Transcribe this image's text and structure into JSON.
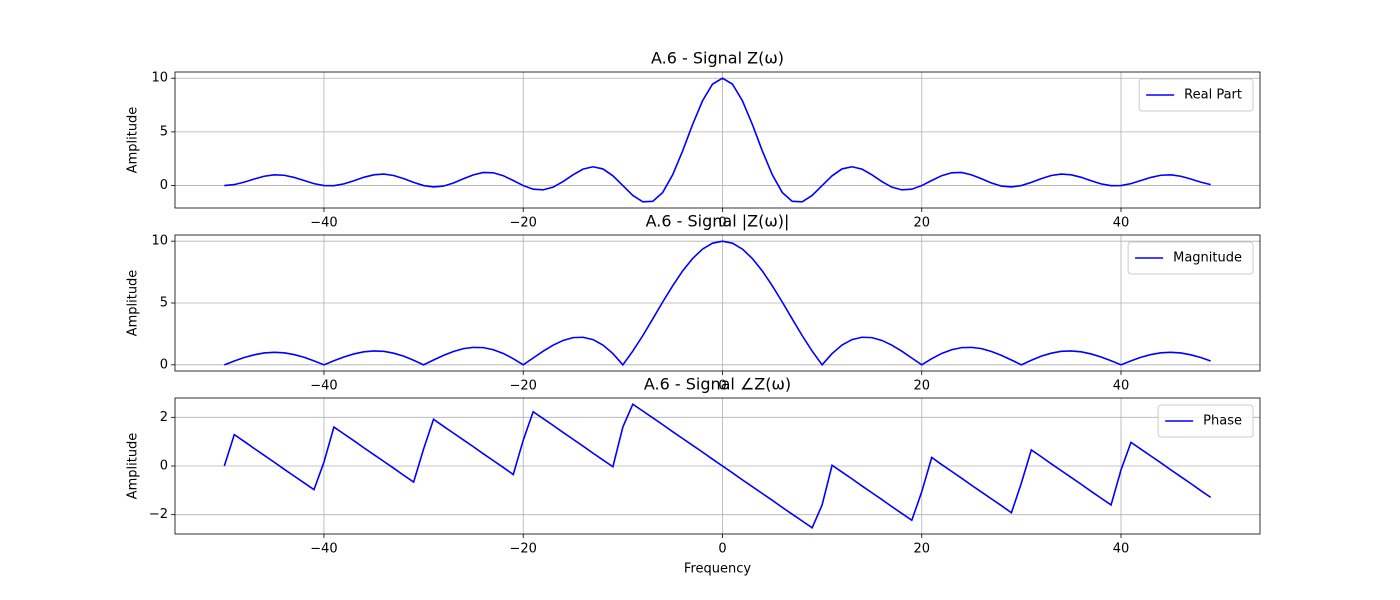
{
  "chart_data": [
    {
      "type": "line",
      "title": "A.6 - Signal Z(ω)",
      "ylabel": "Amplitude",
      "x": [
        -50,
        -49,
        -48,
        -47,
        -46,
        -45,
        -44,
        -43,
        -42,
        -41,
        -40,
        -39,
        -38,
        -37,
        -36,
        -35,
        -34,
        -33,
        -32,
        -31,
        -30,
        -29,
        -28,
        -27,
        -26,
        -25,
        -24,
        -23,
        -22,
        -21,
        -20,
        -19,
        -18,
        -17,
        -16,
        -15,
        -14,
        -13,
        -12,
        -11,
        -10,
        -9,
        -8,
        -7,
        -6,
        -5,
        -4,
        -3,
        -2,
        -1,
        0,
        1,
        2,
        3,
        4,
        5,
        6,
        7,
        8,
        9,
        10,
        11,
        12,
        13,
        14,
        15,
        16,
        17,
        18,
        19,
        20,
        21,
        22,
        23,
        24,
        25,
        26,
        27,
        28,
        29,
        30,
        31,
        32,
        33,
        34,
        35,
        36,
        37,
        38,
        39,
        40,
        41,
        42,
        43,
        44,
        45,
        46,
        47,
        48,
        49
      ],
      "series": [
        {
          "name": "Real Part",
          "color": "#0000ff",
          "values": [
            0,
            0.09,
            0.32,
            0.61,
            0.87,
            1.0,
            0.96,
            0.76,
            0.47,
            0.18,
            0,
            -0.01,
            0.16,
            0.45,
            0.77,
            1.0,
            1.07,
            0.94,
            0.65,
            0.3,
            0,
            -0.13,
            -0.05,
            0.24,
            0.63,
            1.0,
            1.22,
            1.19,
            0.92,
            0.47,
            0,
            -0.34,
            -0.4,
            -0.15,
            0.37,
            1.0,
            1.53,
            1.75,
            1.55,
            0.91,
            0,
            -0.92,
            -1.51,
            -1.47,
            -0.64,
            1.0,
            3.23,
            5.69,
            7.9,
            9.45,
            10,
            9.45,
            7.9,
            5.69,
            3.23,
            1.0,
            -0.64,
            -1.47,
            -1.51,
            -0.92,
            0,
            0.91,
            1.55,
            1.75,
            1.53,
            1.0,
            0.37,
            -0.15,
            -0.4,
            -0.34,
            0,
            0.47,
            0.92,
            1.19,
            1.22,
            1.0,
            0.63,
            0.24,
            -0.05,
            -0.13,
            0,
            0.3,
            0.65,
            0.94,
            1.07,
            1.0,
            0.77,
            0.45,
            0.16,
            -0.01,
            0,
            0.18,
            0.47,
            0.76,
            0.96,
            1.0,
            0.87,
            0.61,
            0.32,
            0.09
          ]
        }
      ],
      "xlim": [
        -54.95,
        53.95
      ],
      "ylim": [
        -2.09,
        10.58
      ],
      "xticks": [
        {
          "value": -40,
          "label": "−40"
        },
        {
          "value": -20,
          "label": "−20"
        },
        0,
        20,
        40
      ],
      "yticks": [
        0,
        5,
        10
      ],
      "grid": true,
      "legend": "upper right"
    },
    {
      "type": "line",
      "title": "A.6 - Signal |Z(ω)|",
      "ylabel": "Amplitude",
      "x": [
        -50,
        -49,
        -48,
        -47,
        -46,
        -45,
        -44,
        -43,
        -42,
        -41,
        -40,
        -39,
        -38,
        -37,
        -36,
        -35,
        -34,
        -33,
        -32,
        -31,
        -30,
        -29,
        -28,
        -27,
        -26,
        -25,
        -24,
        -23,
        -22,
        -21,
        -20,
        -19,
        -18,
        -17,
        -16,
        -15,
        -14,
        -13,
        -12,
        -11,
        -10,
        -9,
        -8,
        -7,
        -6,
        -5,
        -4,
        -3,
        -2,
        -1,
        0,
        1,
        2,
        3,
        4,
        5,
        6,
        7,
        8,
        9,
        10,
        11,
        12,
        13,
        14,
        15,
        16,
        17,
        18,
        19,
        20,
        21,
        22,
        23,
        24,
        25,
        26,
        27,
        28,
        29,
        30,
        31,
        32,
        33,
        34,
        35,
        36,
        37,
        38,
        39,
        40,
        41,
        42,
        43,
        44,
        45,
        46,
        47,
        48,
        49
      ],
      "series": [
        {
          "name": "Magnitude",
          "color": "#0000ff",
          "values": [
            0,
            0.31,
            0.59,
            0.81,
            0.96,
            1.01,
            0.97,
            0.83,
            0.61,
            0.32,
            0,
            0.33,
            0.63,
            0.88,
            1.05,
            1.12,
            1.09,
            0.94,
            0.7,
            0.37,
            0,
            0.39,
            0.76,
            1.08,
            1.31,
            1.41,
            1.39,
            1.22,
            0.92,
            0.5,
            0,
            0.55,
            1.1,
            1.59,
            1.97,
            2.2,
            2.23,
            2.04,
            1.6,
            0.91,
            0,
            1.11,
            2.36,
            3.71,
            5.08,
            6.39,
            7.59,
            8.6,
            9.36,
            9.84,
            10,
            9.84,
            9.36,
            8.6,
            7.59,
            6.39,
            5.08,
            3.71,
            2.36,
            1.11,
            0,
            0.91,
            1.6,
            2.04,
            2.23,
            2.2,
            1.97,
            1.59,
            1.1,
            0.55,
            0,
            0.5,
            0.92,
            1.22,
            1.39,
            1.41,
            1.31,
            1.08,
            0.76,
            0.39,
            0,
            0.37,
            0.7,
            0.94,
            1.09,
            1.12,
            1.05,
            0.88,
            0.63,
            0.33,
            0,
            0.32,
            0.61,
            0.83,
            0.97,
            1.01,
            0.96,
            0.81,
            0.59,
            0.31
          ]
        }
      ],
      "xlim": [
        -54.95,
        53.95
      ],
      "ylim": [
        -0.5,
        10.5
      ],
      "xticks": [
        {
          "value": -40,
          "label": "−40"
        },
        {
          "value": -20,
          "label": "−20"
        },
        0,
        20,
        40
      ],
      "yticks": [
        0,
        5,
        10
      ],
      "grid": true,
      "legend": "upper right"
    },
    {
      "type": "line",
      "title": "A.6 - Signal ∠Z(ω)",
      "ylabel": "Amplitude",
      "xlabel": "Frequency",
      "x": [
        -50,
        -49,
        -48,
        -47,
        -46,
        -45,
        -44,
        -43,
        -42,
        -41,
        -40,
        -39,
        -38,
        -37,
        -36,
        -35,
        -34,
        -33,
        -32,
        -31,
        -30,
        -29,
        -28,
        -27,
        -26,
        -25,
        -24,
        -23,
        -22,
        -21,
        -20,
        -19,
        -18,
        -17,
        -16,
        -15,
        -14,
        -13,
        -12,
        -11,
        -10,
        -9,
        -8,
        -7,
        -6,
        -5,
        -4,
        -3,
        -2,
        -1,
        0,
        1,
        2,
        3,
        4,
        5,
        6,
        7,
        8,
        9,
        10,
        11,
        12,
        13,
        14,
        15,
        16,
        17,
        18,
        19,
        20,
        21,
        22,
        23,
        24,
        25,
        26,
        27,
        28,
        29,
        30,
        31,
        32,
        33,
        34,
        35,
        36,
        37,
        38,
        39,
        40,
        41,
        42,
        43,
        44,
        45,
        46,
        47,
        48,
        49
      ],
      "series": [
        {
          "name": "Phase",
          "color": "#0000ff",
          "values": [
            0,
            1.29,
            1.01,
            0.72,
            0.44,
            0.16,
            -0.13,
            -0.41,
            -0.69,
            -0.97,
            0.16,
            1.6,
            1.32,
            1.04,
            0.75,
            0.47,
            0.19,
            -0.09,
            -0.38,
            -0.66,
            0.7,
            1.92,
            1.63,
            1.35,
            1.07,
            0.79,
            0.5,
            0.22,
            -0.06,
            -0.35,
            1.06,
            2.23,
            1.95,
            1.67,
            1.38,
            1.1,
            0.82,
            0.53,
            0.25,
            -0.03,
            1.6,
            2.54,
            2.26,
            1.98,
            1.7,
            1.41,
            1.13,
            0.85,
            0.57,
            0.28,
            0,
            -0.28,
            -0.57,
            -0.85,
            -1.13,
            -1.41,
            -1.7,
            -1.98,
            -2.26,
            -2.54,
            -1.6,
            0.03,
            -0.25,
            -0.53,
            -0.82,
            -1.1,
            -1.38,
            -1.67,
            -1.95,
            -2.23,
            -1.06,
            0.35,
            0.06,
            -0.22,
            -0.5,
            -0.79,
            -1.07,
            -1.35,
            -1.63,
            -1.92,
            -0.7,
            0.66,
            0.38,
            0.09,
            -0.19,
            -0.47,
            -0.75,
            -1.04,
            -1.32,
            -1.6,
            -0.16,
            0.97,
            0.69,
            0.41,
            0.13,
            -0.16,
            -0.44,
            -0.72,
            -1.01,
            -1.29
          ]
        }
      ],
      "xlim": [
        -54.95,
        53.95
      ],
      "ylim": [
        -2.794,
        2.794
      ],
      "xticks": [
        {
          "value": -40,
          "label": "−40"
        },
        {
          "value": -20,
          "label": "−20"
        },
        0,
        20,
        40
      ],
      "yticks": [
        {
          "value": -2,
          "label": "−2"
        },
        0,
        2
      ],
      "grid": true,
      "legend": "upper right"
    }
  ]
}
